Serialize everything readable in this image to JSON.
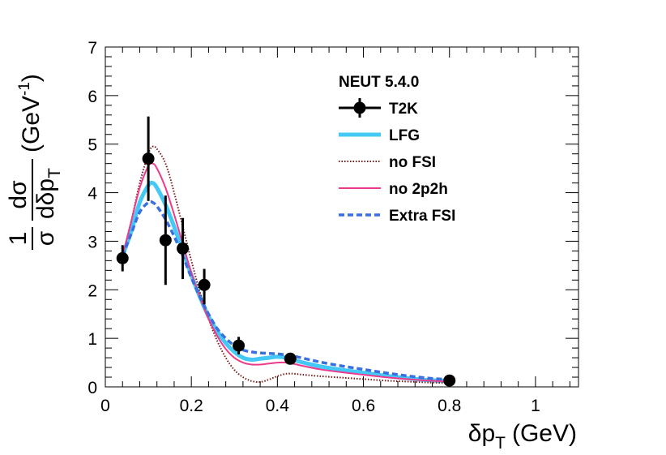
{
  "chart_data": {
    "type": "line",
    "title": "NEUT 5.4.0",
    "xlabel": {
      "main": "δp",
      "sub": "T",
      "unit": "(GeV)"
    },
    "ylabel": {
      "frac1_num": "1",
      "frac1_den": "σ",
      "frac2_num": "dσ",
      "frac2_den": "dδp",
      "frac2_den_sub": "T",
      "unit_open": "(GeV",
      "unit_sup": "-1",
      "unit_close": ")"
    },
    "xlim": [
      0,
      1.1
    ],
    "ylim": [
      0,
      7
    ],
    "xticks": [
      0,
      0.2,
      0.4,
      0.6,
      0.8,
      1
    ],
    "xtick_labels": [
      "0",
      "0.2",
      "0.4",
      "0.6",
      "0.8",
      "1"
    ],
    "yticks": [
      0,
      1,
      2,
      3,
      4,
      5,
      6,
      7
    ],
    "ytick_labels": [
      "0",
      "1",
      "2",
      "3",
      "4",
      "5",
      "6",
      "7"
    ],
    "legend_position": "top-right",
    "data_points": {
      "name": "T2K",
      "color": "#000000",
      "x": [
        0.04,
        0.1,
        0.14,
        0.18,
        0.23,
        0.31,
        0.43,
        0.8
      ],
      "y": [
        2.65,
        4.7,
        3.02,
        2.85,
        2.1,
        0.85,
        0.58,
        0.13
      ],
      "err_low": [
        0.27,
        0.87,
        0.92,
        0.63,
        0.4,
        0.18,
        0.04,
        0.02
      ],
      "err_high": [
        0.27,
        0.87,
        0.92,
        0.63,
        0.33,
        0.18,
        0.04,
        0.02
      ]
    },
    "series": [
      {
        "name": "LFG",
        "color": "#44c8f5",
        "style": "solid-thick",
        "x": [
          0.04,
          0.06,
          0.08,
          0.1,
          0.11,
          0.12,
          0.14,
          0.16,
          0.18,
          0.2,
          0.22,
          0.24,
          0.26,
          0.28,
          0.3,
          0.32,
          0.34,
          0.36,
          0.38,
          0.4,
          0.42,
          0.44,
          0.46,
          0.5,
          0.55,
          0.6,
          0.65,
          0.7,
          0.75,
          0.8
        ],
        "y": [
          2.7,
          3.2,
          3.8,
          4.15,
          4.2,
          4.1,
          3.75,
          3.3,
          2.8,
          2.3,
          1.85,
          1.45,
          1.15,
          0.9,
          0.72,
          0.6,
          0.56,
          0.58,
          0.6,
          0.62,
          0.6,
          0.55,
          0.5,
          0.42,
          0.35,
          0.29,
          0.23,
          0.18,
          0.14,
          0.12
        ]
      },
      {
        "name": "no FSI",
        "color": "#7a1a1a",
        "style": "dotted",
        "x": [
          0.04,
          0.06,
          0.08,
          0.1,
          0.11,
          0.12,
          0.14,
          0.16,
          0.18,
          0.2,
          0.22,
          0.24,
          0.26,
          0.28,
          0.3,
          0.32,
          0.34,
          0.36,
          0.38,
          0.4,
          0.42,
          0.44,
          0.46,
          0.5,
          0.55,
          0.6,
          0.65,
          0.7,
          0.75,
          0.8
        ],
        "y": [
          2.7,
          3.4,
          4.2,
          4.8,
          4.95,
          4.9,
          4.6,
          4.0,
          3.3,
          2.6,
          1.95,
          1.4,
          0.95,
          0.6,
          0.35,
          0.2,
          0.12,
          0.1,
          0.15,
          0.22,
          0.27,
          0.27,
          0.25,
          0.22,
          0.19,
          0.16,
          0.13,
          0.11,
          0.09,
          0.08
        ]
      },
      {
        "name": "no 2p2h",
        "color": "#ee3a8c",
        "style": "solid-thin",
        "x": [
          0.04,
          0.06,
          0.08,
          0.1,
          0.11,
          0.12,
          0.14,
          0.16,
          0.18,
          0.2,
          0.22,
          0.24,
          0.26,
          0.28,
          0.3,
          0.32,
          0.34,
          0.36,
          0.38,
          0.4,
          0.42,
          0.44,
          0.46,
          0.5,
          0.55,
          0.6,
          0.65,
          0.7,
          0.75,
          0.8
        ],
        "y": [
          2.7,
          3.4,
          4.1,
          4.55,
          4.6,
          4.5,
          4.1,
          3.55,
          2.95,
          2.35,
          1.85,
          1.4,
          1.05,
          0.78,
          0.6,
          0.5,
          0.46,
          0.46,
          0.48,
          0.5,
          0.5,
          0.47,
          0.43,
          0.36,
          0.3,
          0.25,
          0.2,
          0.16,
          0.13,
          0.11
        ]
      },
      {
        "name": "Extra FSI",
        "color": "#3a6fe0",
        "style": "dashed",
        "x": [
          0.04,
          0.06,
          0.08,
          0.1,
          0.11,
          0.12,
          0.14,
          0.16,
          0.18,
          0.2,
          0.22,
          0.24,
          0.26,
          0.28,
          0.3,
          0.32,
          0.34,
          0.36,
          0.38,
          0.4,
          0.42,
          0.44,
          0.46,
          0.5,
          0.55,
          0.6,
          0.65,
          0.7,
          0.75,
          0.8
        ],
        "y": [
          2.7,
          3.15,
          3.6,
          3.8,
          3.8,
          3.72,
          3.45,
          3.1,
          2.7,
          2.25,
          1.85,
          1.5,
          1.2,
          1.0,
          0.85,
          0.76,
          0.72,
          0.7,
          0.69,
          0.68,
          0.66,
          0.63,
          0.59,
          0.51,
          0.43,
          0.36,
          0.29,
          0.23,
          0.18,
          0.15
        ]
      }
    ]
  }
}
